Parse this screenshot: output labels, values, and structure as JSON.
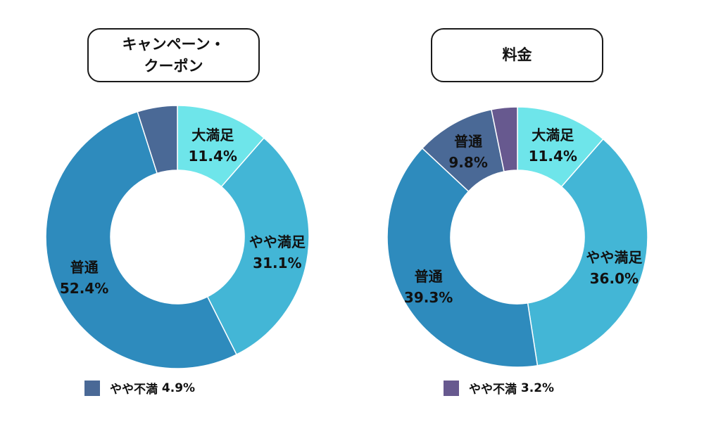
{
  "chart_data": [
    {
      "type": "pie",
      "variant": "donut",
      "title": [
        "キャンペーン・",
        "クーポン"
      ],
      "categories": [
        "大満足",
        "やや満足",
        "普通",
        "やや不満"
      ],
      "values": [
        11.4,
        31.1,
        52.4,
        4.9
      ],
      "value_labels": [
        "11.4%",
        "31.1%",
        "52.4%",
        "4.9%"
      ],
      "colors": [
        "#6ee5ea",
        "#43b6d6",
        "#2e8bbd",
        "#4a6996"
      ],
      "labeled_on_chart": [
        true,
        true,
        true,
        false
      ],
      "legend": {
        "label": "やや不満",
        "value": "4.9%",
        "color": "#4a6996"
      }
    },
    {
      "type": "pie",
      "variant": "donut",
      "title": [
        "料金"
      ],
      "categories": [
        "大満足",
        "やや満足",
        "普通",
        "普通",
        "やや不満"
      ],
      "values": [
        11.4,
        36.0,
        39.3,
        9.8,
        3.2
      ],
      "value_labels": [
        "11.4%",
        "36.0%",
        "39.3%",
        "9.8%",
        "3.2%"
      ],
      "colors": [
        "#6ee5ea",
        "#43b6d6",
        "#2e8bbd",
        "#4a6996",
        "#67598f"
      ],
      "labeled_on_chart": [
        true,
        true,
        true,
        true,
        false
      ],
      "legend": {
        "label": "やや不満",
        "value": "3.2%",
        "color": "#67598f"
      }
    }
  ]
}
